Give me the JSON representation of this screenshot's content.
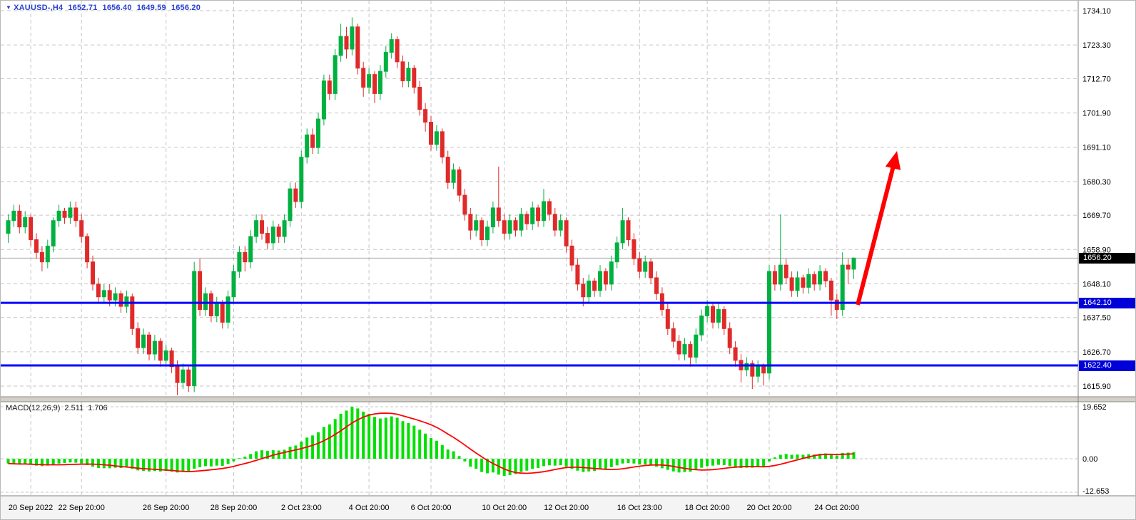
{
  "header": {
    "icon": "▼",
    "symbol_period": "XAUUSD-,H4",
    "open": "1652.71",
    "high": "1656.40",
    "low": "1649.59",
    "close": "1656.20"
  },
  "macd_info": {
    "label": "MACD(12,26,9)",
    "value1": "2.511",
    "value2": "1.706"
  },
  "price_tags": {
    "current": {
      "value": "1656.20",
      "price": 1656.2
    },
    "support1": {
      "value": "1642.10",
      "price": 1642.1
    },
    "support2": {
      "value": "1622.40",
      "price": 1622.4
    }
  },
  "colors": {
    "header_text": "#2940d0",
    "bull": "#00b140",
    "bear": "#e02a2a",
    "grid": "#c6c6c6",
    "support_line": "#0000ff",
    "current_line": "#a8a8a8",
    "histogram": "#00e000",
    "signal": "#ff0000",
    "arrow": "#ff0000",
    "tag_current_bg": "#000000",
    "tag_support_bg": "#0000d8",
    "axis_text": "#000000"
  },
  "chart_data": {
    "type": "candlestick",
    "symbol": "XAUUSD",
    "timeframe": "H4",
    "current_price": 1656.2,
    "support_levels": [
      1642.1,
      1622.4
    ],
    "price_axis_labels": [
      "1734.10",
      "1723.30",
      "1712.70",
      "1701.90",
      "1691.10",
      "1680.30",
      "1669.70",
      "1658.90",
      "1648.10",
      "1637.50",
      "1626.70",
      "1615.90"
    ],
    "time_labels": [
      {
        "text": "20 Sep 2022",
        "bar": 4
      },
      {
        "text": "22 Sep 20:00",
        "bar": 13
      },
      {
        "text": "26 Sep 20:00",
        "bar": 28
      },
      {
        "text": "28 Sep 20:00",
        "bar": 40
      },
      {
        "text": "2 Oct 23:00",
        "bar": 52
      },
      {
        "text": "4 Oct 20:00",
        "bar": 64
      },
      {
        "text": "6 Oct 20:00",
        "bar": 75
      },
      {
        "text": "10 Oct 20:00",
        "bar": 88
      },
      {
        "text": "12 Oct 20:00",
        "bar": 99
      },
      {
        "text": "16 Oct 23:00",
        "bar": 112
      },
      {
        "text": "18 Oct 20:00",
        "bar": 124
      },
      {
        "text": "20 Oct 20:00",
        "bar": 135
      },
      {
        "text": "24 Oct 20:00",
        "bar": 147
      }
    ],
    "candles": [
      [
        1664,
        1670,
        1661,
        1668
      ],
      [
        1668,
        1673,
        1666,
        1671
      ],
      [
        1671,
        1673,
        1664,
        1666
      ],
      [
        1666,
        1671,
        1664,
        1669
      ],
      [
        1669,
        1670,
        1660,
        1662
      ],
      [
        1662,
        1664,
        1656,
        1658
      ],
      [
        1658,
        1660,
        1652,
        1655
      ],
      [
        1655,
        1662,
        1653,
        1660
      ],
      [
        1660,
        1669,
        1658,
        1668
      ],
      [
        1668,
        1673,
        1666,
        1671
      ],
      [
        1671,
        1672,
        1667,
        1669
      ],
      [
        1669,
        1674,
        1667,
        1672
      ],
      [
        1672,
        1674,
        1666,
        1668
      ],
      [
        1668,
        1670,
        1661,
        1663
      ],
      [
        1663,
        1664,
        1653,
        1655
      ],
      [
        1655,
        1657,
        1646,
        1648
      ],
      [
        1648,
        1650,
        1642,
        1644
      ],
      [
        1644,
        1648,
        1642,
        1646
      ],
      [
        1646,
        1648,
        1641,
        1643
      ],
      [
        1643,
        1647,
        1641,
        1645
      ],
      [
        1645,
        1646,
        1639,
        1641
      ],
      [
        1641,
        1646,
        1639,
        1644
      ],
      [
        1644,
        1645,
        1632,
        1634
      ],
      [
        1634,
        1636,
        1626,
        1628
      ],
      [
        1628,
        1634,
        1626,
        1632
      ],
      [
        1632,
        1633,
        1624,
        1626
      ],
      [
        1626,
        1632,
        1624,
        1630
      ],
      [
        1630,
        1631,
        1622,
        1624
      ],
      [
        1624,
        1629,
        1622,
        1627
      ],
      [
        1627,
        1628,
        1620,
        1622
      ],
      [
        1622,
        1624,
        1613,
        1617
      ],
      [
        1617,
        1623,
        1615,
        1621
      ],
      [
        1621,
        1622,
        1614,
        1616
      ],
      [
        1616,
        1655,
        1614,
        1652
      ],
      [
        1652,
        1656,
        1638,
        1640
      ],
      [
        1640,
        1647,
        1638,
        1645
      ],
      [
        1645,
        1646,
        1636,
        1638
      ],
      [
        1638,
        1644,
        1636,
        1642
      ],
      [
        1642,
        1643,
        1634,
        1636
      ],
      [
        1636,
        1646,
        1634,
        1644
      ],
      [
        1644,
        1654,
        1642,
        1652
      ],
      [
        1652,
        1660,
        1650,
        1658
      ],
      [
        1658,
        1660,
        1652,
        1655
      ],
      [
        1655,
        1665,
        1653,
        1663
      ],
      [
        1663,
        1670,
        1661,
        1668
      ],
      [
        1668,
        1670,
        1662,
        1664
      ],
      [
        1664,
        1666,
        1659,
        1661
      ],
      [
        1661,
        1668,
        1659,
        1666
      ],
      [
        1666,
        1667,
        1661,
        1663
      ],
      [
        1663,
        1670,
        1661,
        1668
      ],
      [
        1668,
        1680,
        1666,
        1678
      ],
      [
        1678,
        1680,
        1672,
        1674
      ],
      [
        1674,
        1690,
        1672,
        1688
      ],
      [
        1688,
        1697,
        1686,
        1695
      ],
      [
        1695,
        1697,
        1689,
        1691
      ],
      [
        1691,
        1702,
        1689,
        1700
      ],
      [
        1700,
        1714,
        1698,
        1712
      ],
      [
        1712,
        1714,
        1706,
        1708
      ],
      [
        1708,
        1722,
        1706,
        1720
      ],
      [
        1720,
        1730,
        1718,
        1726
      ],
      [
        1726,
        1729,
        1719,
        1722
      ],
      [
        1722,
        1732,
        1720,
        1729
      ],
      [
        1729,
        1730,
        1714,
        1716
      ],
      [
        1716,
        1718,
        1707,
        1710
      ],
      [
        1710,
        1716,
        1708,
        1714
      ],
      [
        1714,
        1715,
        1705,
        1708
      ],
      [
        1708,
        1717,
        1706,
        1715
      ],
      [
        1715,
        1723,
        1713,
        1721
      ],
      [
        1721,
        1727,
        1719,
        1725
      ],
      [
        1725,
        1726,
        1716,
        1718
      ],
      [
        1718,
        1720,
        1710,
        1712
      ],
      [
        1712,
        1718,
        1710,
        1716
      ],
      [
        1716,
        1717,
        1708,
        1710
      ],
      [
        1710,
        1712,
        1701,
        1703
      ],
      [
        1703,
        1705,
        1696,
        1699
      ],
      [
        1699,
        1701,
        1690,
        1692
      ],
      [
        1692,
        1698,
        1690,
        1696
      ],
      [
        1696,
        1697,
        1686,
        1688
      ],
      [
        1688,
        1690,
        1678,
        1680
      ],
      [
        1680,
        1686,
        1678,
        1684
      ],
      [
        1684,
        1685,
        1674,
        1676
      ],
      [
        1676,
        1678,
        1668,
        1670
      ],
      [
        1670,
        1672,
        1662,
        1665
      ],
      [
        1665,
        1670,
        1663,
        1668
      ],
      [
        1668,
        1669,
        1660,
        1662
      ],
      [
        1662,
        1668,
        1660,
        1666
      ],
      [
        1666,
        1674,
        1664,
        1672
      ],
      [
        1672,
        1685,
        1666,
        1668
      ],
      [
        1668,
        1670,
        1662,
        1664
      ],
      [
        1664,
        1670,
        1662,
        1668
      ],
      [
        1668,
        1669,
        1663,
        1665
      ],
      [
        1665,
        1672,
        1663,
        1670
      ],
      [
        1670,
        1671,
        1665,
        1667
      ],
      [
        1667,
        1674,
        1665,
        1672
      ],
      [
        1672,
        1673,
        1666,
        1668
      ],
      [
        1668,
        1678,
        1666,
        1674
      ],
      [
        1674,
        1675,
        1668,
        1670
      ],
      [
        1670,
        1672,
        1663,
        1665
      ],
      [
        1665,
        1670,
        1663,
        1668
      ],
      [
        1668,
        1669,
        1658,
        1660
      ],
      [
        1660,
        1662,
        1652,
        1654
      ],
      [
        1654,
        1656,
        1646,
        1648
      ],
      [
        1648,
        1650,
        1641,
        1644
      ],
      [
        1644,
        1651,
        1642,
        1649
      ],
      [
        1649,
        1650,
        1644,
        1646
      ],
      [
        1646,
        1654,
        1644,
        1652
      ],
      [
        1652,
        1653,
        1646,
        1648
      ],
      [
        1648,
        1657,
        1646,
        1655
      ],
      [
        1655,
        1663,
        1653,
        1661
      ],
      [
        1661,
        1672,
        1659,
        1668
      ],
      [
        1668,
        1669,
        1660,
        1662
      ],
      [
        1662,
        1664,
        1654,
        1656
      ],
      [
        1656,
        1658,
        1650,
        1652
      ],
      [
        1652,
        1657,
        1650,
        1655
      ],
      [
        1655,
        1656,
        1648,
        1650
      ],
      [
        1650,
        1652,
        1643,
        1645
      ],
      [
        1645,
        1647,
        1638,
        1640
      ],
      [
        1640,
        1642,
        1632,
        1634
      ],
      [
        1634,
        1636,
        1628,
        1630
      ],
      [
        1630,
        1632,
        1624,
        1626
      ],
      [
        1626,
        1631,
        1624,
        1629
      ],
      [
        1629,
        1630,
        1622,
        1625
      ],
      [
        1625,
        1634,
        1623,
        1632
      ],
      [
        1632,
        1640,
        1630,
        1638
      ],
      [
        1638,
        1643,
        1636,
        1641
      ],
      [
        1641,
        1642,
        1634,
        1636
      ],
      [
        1636,
        1642,
        1634,
        1640
      ],
      [
        1640,
        1641,
        1632,
        1634
      ],
      [
        1634,
        1636,
        1626,
        1628
      ],
      [
        1628,
        1630,
        1622,
        1624
      ],
      [
        1624,
        1626,
        1617,
        1621
      ],
      [
        1621,
        1625,
        1619,
        1623
      ],
      [
        1623,
        1624,
        1615,
        1619
      ],
      [
        1619,
        1624,
        1617,
        1622
      ],
      [
        1622,
        1623,
        1616,
        1620
      ],
      [
        1620,
        1654,
        1618,
        1652
      ],
      [
        1652,
        1654,
        1646,
        1648
      ],
      [
        1648,
        1670,
        1646,
        1654
      ],
      [
        1654,
        1656,
        1648,
        1650
      ],
      [
        1650,
        1652,
        1644,
        1646
      ],
      [
        1646,
        1652,
        1644,
        1650
      ],
      [
        1650,
        1651,
        1645,
        1647
      ],
      [
        1647,
        1653,
        1645,
        1651
      ],
      [
        1651,
        1652,
        1646,
        1648
      ],
      [
        1648,
        1654,
        1646,
        1652
      ],
      [
        1652,
        1653,
        1647,
        1649
      ],
      [
        1649,
        1650,
        1638,
        1643
      ],
      [
        1643,
        1645,
        1637,
        1640
      ],
      [
        1640,
        1658,
        1638,
        1654
      ],
      [
        1654,
        1656,
        1648,
        1652.7
      ],
      [
        1652.71,
        1656.4,
        1649.59,
        1656.2
      ]
    ],
    "macd": {
      "params": "12,26,9",
      "axis_labels": [
        "19.652",
        "0.00",
        "-12.653"
      ],
      "max": 19.652,
      "min": -12.653,
      "histogram": [
        -1.8,
        -2,
        -2.2,
        -2,
        -2.3,
        -2.6,
        -2.8,
        -2.6,
        -2.2,
        -1.8,
        -1.6,
        -1.4,
        -1.5,
        -1.8,
        -2.4,
        -3,
        -3.5,
        -3.6,
        -3.6,
        -3.4,
        -3.5,
        -3.3,
        -3.8,
        -4.4,
        -4.6,
        -4.8,
        -4.6,
        -4.8,
        -4.6,
        -4.9,
        -5.2,
        -5,
        -5.1,
        -3.8,
        -3.2,
        -2.8,
        -2.9,
        -2.6,
        -2.7,
        -2,
        -1,
        0.2,
        0.8,
        1.8,
        2.8,
        3.2,
        3,
        3.2,
        3.1,
        3.4,
        4.5,
        5,
        6.5,
        8,
        8.8,
        10,
        12,
        13,
        15,
        17,
        18.2,
        19.6,
        19,
        17.8,
        17,
        15.8,
        15.2,
        15.5,
        16,
        15.5,
        14.2,
        13.5,
        12.5,
        11,
        9.5,
        7.8,
        6.8,
        5.2,
        3.5,
        2.8,
        1,
        -1,
        -3,
        -3.8,
        -5,
        -5.5,
        -5.2,
        -6,
        -6.5,
        -6.2,
        -5.8,
        -5,
        -4.5,
        -3.8,
        -3.5,
        -2.8,
        -2.5,
        -2.6,
        -2.4,
        -3,
        -3.8,
        -4.5,
        -5,
        -4.8,
        -4.6,
        -4,
        -3.8,
        -3.2,
        -2.5,
        -1.8,
        -1.6,
        -1.8,
        -2.2,
        -2.2,
        -2.5,
        -3,
        -3.6,
        -4.2,
        -4.8,
        -5.2,
        -5,
        -4.9,
        -4.2,
        -3.4,
        -2.8,
        -2.6,
        -2.3,
        -2.4,
        -2.8,
        -3.2,
        -3.5,
        -3.4,
        -3.4,
        -3.2,
        -3.1,
        -1,
        0.5,
        1.5,
        1.8,
        1.5,
        1.6,
        1.5,
        1.7,
        1.6,
        1.9,
        2,
        1.4,
        1.2,
        2.2,
        2.3,
        2.511
      ]
    }
  }
}
